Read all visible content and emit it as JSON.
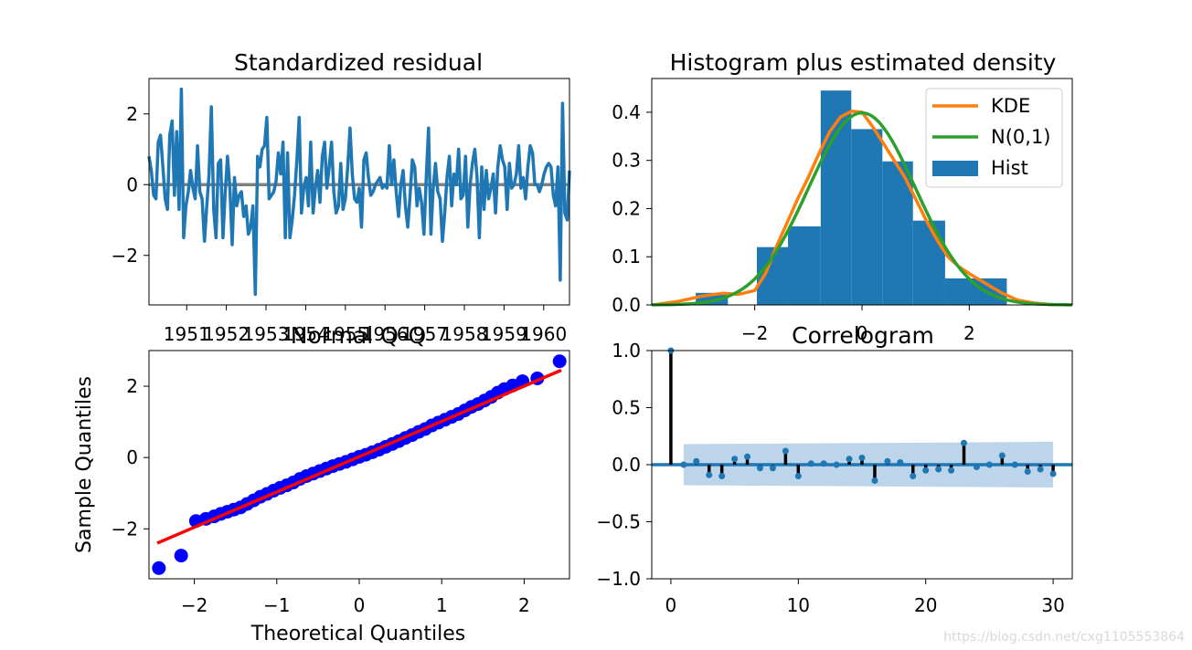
{
  "chart_data": [
    {
      "type": "line",
      "title": "Standardized residual",
      "xlabel": "",
      "ylabel": "",
      "x_tick_labels": [
        "1951",
        "1952",
        "1953",
        "1954",
        "1955",
        "1956",
        "1957",
        "1958",
        "1959",
        "1960"
      ],
      "y_ticks": [
        2,
        0,
        -2
      ],
      "y_tick_labels": [
        "2",
        "0",
        "−2"
      ],
      "ylim": [
        -3.4,
        3.0
      ],
      "xlim": [
        1950.05,
        1960.65
      ],
      "reference_line": 0,
      "series": [
        {
          "name": "residual",
          "color": "#1f77b4",
          "values": [
            0.8,
            0.4,
            -0.3,
            -0.4,
            1.2,
            1.4,
            0.5,
            -0.4,
            -0.7,
            1.4,
            1.8,
            -0.3,
            1.5,
            -0.7,
            2.7,
            -1.5,
            -0.6,
            -0.2,
            0.4,
            -0.1,
            -0.4,
            1.1,
            -0.2,
            -0.4,
            -1.6,
            -0.6,
            0.3,
            2.2,
            -0.7,
            -1.5,
            0.6,
            0.7,
            -1.5,
            -0.2,
            0.8,
            -0.1,
            -1.7,
            0.2,
            -0.6,
            -0.3,
            -0.2,
            -0.9,
            -0.6,
            -1.4,
            -1.2,
            -0.6,
            -3.1,
            0.8,
            0.5,
            1.0,
            1.1,
            1.9,
            -0.4,
            -0.3,
            -0.2,
            0.1,
            0.9,
            0.3,
            1.2,
            -1.5,
            0.9,
            -1.5,
            -1.0,
            -0.3,
            0.7,
            1.9,
            -0.8,
            -0.1,
            0.2,
            -0.6,
            1.2,
            -0.8,
            -0.1,
            0.4,
            -0.5,
            0.8,
            1.2,
            -0.1,
            0.5,
            1.2,
            -0.2,
            -0.8,
            -0.6,
            0.6,
            -0.7,
            -0.4,
            0.5,
            1.6,
            0.3,
            -0.4,
            -0.5,
            -0.1,
            -1.2,
            0.7,
            0.9,
            0.2,
            -0.3,
            -0.2,
            0.0,
            0.1,
            0.2,
            -0.1,
            0.0,
            -0.1,
            1.1,
            0.0,
            0.7,
            -0.2,
            -0.9,
            0.0,
            0.4,
            -0.6,
            -1.2,
            -0.3,
            0.7,
            0.5,
            -0.6,
            -0.1,
            -0.5,
            -1.4,
            0.2,
            1.6,
            -1.4,
            -0.1,
            0.6,
            -0.2,
            -0.4,
            -1.6,
            -0.8,
            0.2,
            0.8,
            -0.6,
            0.3,
            0.0,
            1.0,
            -0.4,
            -0.3,
            0.8,
            -1.2,
            0.0,
            0.6,
            1.0,
            0.2,
            -1.5,
            0.5,
            -0.7,
            0.4,
            -0.4,
            -0.1,
            0.3,
            -0.8,
            0.5,
            1.1,
            0.7,
            0.5,
            -0.7,
            0.6,
            -0.1,
            0.0,
            0.3,
            1.1,
            -0.1,
            0.2,
            -0.4,
            0.5,
            1.1,
            0.9,
            0.0,
            0.0,
            -0.2,
            0.0,
            0.3,
            0.5,
            0.6,
            0.5,
            -0.3,
            -0.6,
            0.5,
            -2.7,
            2.3,
            -0.8,
            -1.0,
            0.4
          ]
        }
      ]
    },
    {
      "type": "histogram",
      "title": "Histogram plus estimated density",
      "xlabel": "",
      "ylabel": "",
      "x_ticks": [
        -2,
        0,
        2
      ],
      "x_tick_labels": [
        "−2",
        "0",
        "2"
      ],
      "y_ticks": [
        0.0,
        0.1,
        0.2,
        0.3,
        0.4
      ],
      "y_tick_labels": [
        "0.0",
        "0.1",
        "0.2",
        "0.3",
        "0.4"
      ],
      "xlim": [
        -3.92,
        3.92
      ],
      "ylim": [
        0,
        0.47
      ],
      "bins": [
        {
          "left": -3.1,
          "right": -2.5,
          "height": 0.025
        },
        {
          "left": -1.96,
          "right": -1.38,
          "height": 0.12
        },
        {
          "left": -1.38,
          "right": -0.77,
          "height": 0.163
        },
        {
          "left": -0.77,
          "right": -0.2,
          "height": 0.445
        },
        {
          "left": -0.2,
          "right": 0.38,
          "height": 0.365
        },
        {
          "left": 0.38,
          "right": 0.95,
          "height": 0.298
        },
        {
          "left": 0.95,
          "right": 1.55,
          "height": 0.175
        },
        {
          "left": 1.55,
          "right": 2.7,
          "height": 0.055
        }
      ],
      "kde": {
        "x": [
          -3.9,
          -3.4,
          -3.0,
          -2.6,
          -2.3,
          -2.0,
          -1.8,
          -1.6,
          -1.4,
          -1.2,
          -1.0,
          -0.8,
          -0.6,
          -0.4,
          -0.2,
          0.0,
          0.2,
          0.4,
          0.6,
          0.8,
          1.0,
          1.2,
          1.4,
          1.6,
          1.8,
          2.0,
          2.3,
          2.6,
          2.9,
          3.2,
          3.5,
          3.9
        ],
        "y": [
          0.0,
          0.008,
          0.018,
          0.024,
          0.022,
          0.03,
          0.065,
          0.12,
          0.17,
          0.22,
          0.265,
          0.315,
          0.36,
          0.39,
          0.402,
          0.4,
          0.37,
          0.335,
          0.3,
          0.265,
          0.22,
          0.175,
          0.135,
          0.1,
          0.08,
          0.065,
          0.045,
          0.025,
          0.01,
          0.004,
          0.001,
          0.0
        ]
      },
      "legend": [
        {
          "label": "KDE",
          "color": "#ff7f0e",
          "kind": "line"
        },
        {
          "label": "N(0,1)",
          "color": "#2ca02c",
          "kind": "line"
        },
        {
          "label": "Hist",
          "color": "#1f77b4",
          "kind": "patch"
        }
      ],
      "legend_position": "top-right"
    },
    {
      "type": "scatter",
      "title": "Normal Q-Q",
      "xlabel": "Theoretical Quantiles",
      "ylabel": "Sample Quantiles",
      "x_ticks": [
        -2,
        -1,
        0,
        1,
        2
      ],
      "x_tick_labels": [
        "−2",
        "−1",
        "0",
        "1",
        "2"
      ],
      "y_ticks": [
        2,
        0,
        -2
      ],
      "y_tick_labels": [
        "2",
        "0",
        "−2"
      ],
      "xlim": [
        -2.55,
        2.55
      ],
      "ylim": [
        -3.4,
        3.0
      ],
      "points_color": "#0000ff",
      "line_color": "#ff0000",
      "reference_line": {
        "x": [
          -2.45,
          2.45
        ],
        "y": [
          -2.4,
          2.45
        ]
      },
      "points": {
        "x": [
          -2.43,
          -2.16,
          -1.98,
          -1.86,
          -1.76,
          -1.68,
          -1.6,
          -1.52,
          -1.44,
          -1.36,
          -1.28,
          -1.2,
          -1.12,
          -1.04,
          -0.96,
          -0.88,
          -0.8,
          -0.72,
          -0.64,
          -0.56,
          -0.48,
          -0.4,
          -0.32,
          -0.24,
          -0.16,
          -0.08,
          0.0,
          0.08,
          0.16,
          0.24,
          0.32,
          0.4,
          0.48,
          0.56,
          0.64,
          0.72,
          0.8,
          0.88,
          0.96,
          1.04,
          1.12,
          1.2,
          1.28,
          1.36,
          1.44,
          1.52,
          1.6,
          1.68,
          1.76,
          1.86,
          1.98,
          2.16,
          2.43
        ],
        "y": [
          -3.1,
          -2.75,
          -1.78,
          -1.72,
          -1.65,
          -1.58,
          -1.52,
          -1.46,
          -1.4,
          -1.3,
          -1.2,
          -1.1,
          -1.02,
          -0.93,
          -0.85,
          -0.78,
          -0.7,
          -0.6,
          -0.52,
          -0.45,
          -0.38,
          -0.31,
          -0.24,
          -0.18,
          -0.12,
          -0.05,
          0.02,
          0.08,
          0.15,
          0.22,
          0.3,
          0.38,
          0.46,
          0.55,
          0.63,
          0.72,
          0.8,
          0.9,
          0.98,
          1.06,
          1.14,
          1.22,
          1.32,
          1.42,
          1.5,
          1.6,
          1.7,
          1.82,
          1.92,
          2.02,
          2.14,
          2.22,
          2.7
        ]
      }
    },
    {
      "type": "stem",
      "title": "Correlogram",
      "xlabel": "",
      "ylabel": "",
      "x_ticks": [
        0,
        10,
        20,
        30
      ],
      "x_tick_labels": [
        "0",
        "10",
        "20",
        "30"
      ],
      "y_ticks": [
        1.0,
        0.5,
        0.0,
        -0.5,
        -1.0
      ],
      "y_tick_labels": [
        "1.0",
        "0.5",
        "0.0",
        "−0.5",
        "−1.0"
      ],
      "xlim": [
        -1.5,
        31.5
      ],
      "ylim": [
        -1.0,
        1.0
      ],
      "lags": [
        0,
        1,
        2,
        3,
        4,
        5,
        6,
        7,
        8,
        9,
        10,
        11,
        12,
        13,
        14,
        15,
        16,
        17,
        18,
        19,
        20,
        21,
        22,
        23,
        24,
        25,
        26,
        27,
        28,
        29,
        30
      ],
      "acf": [
        1.0,
        0.0,
        0.03,
        -0.09,
        -0.1,
        0.05,
        0.07,
        -0.03,
        -0.03,
        0.12,
        -0.1,
        0.01,
        0.01,
        0.0,
        0.05,
        0.06,
        -0.14,
        0.03,
        0.02,
        -0.1,
        -0.05,
        -0.04,
        -0.05,
        0.19,
        -0.02,
        0.0,
        0.08,
        0.0,
        -0.06,
        -0.04,
        -0.08
      ],
      "confint": {
        "lags": [
          1,
          30
        ],
        "upper": [
          0.18,
          0.2
        ],
        "lower": [
          -0.18,
          -0.2
        ]
      },
      "zero_line_color": "#1f77b4",
      "band_color": "#b2cee6"
    }
  ],
  "watermark": "https://blog.csdn.net/cxg1105553864"
}
